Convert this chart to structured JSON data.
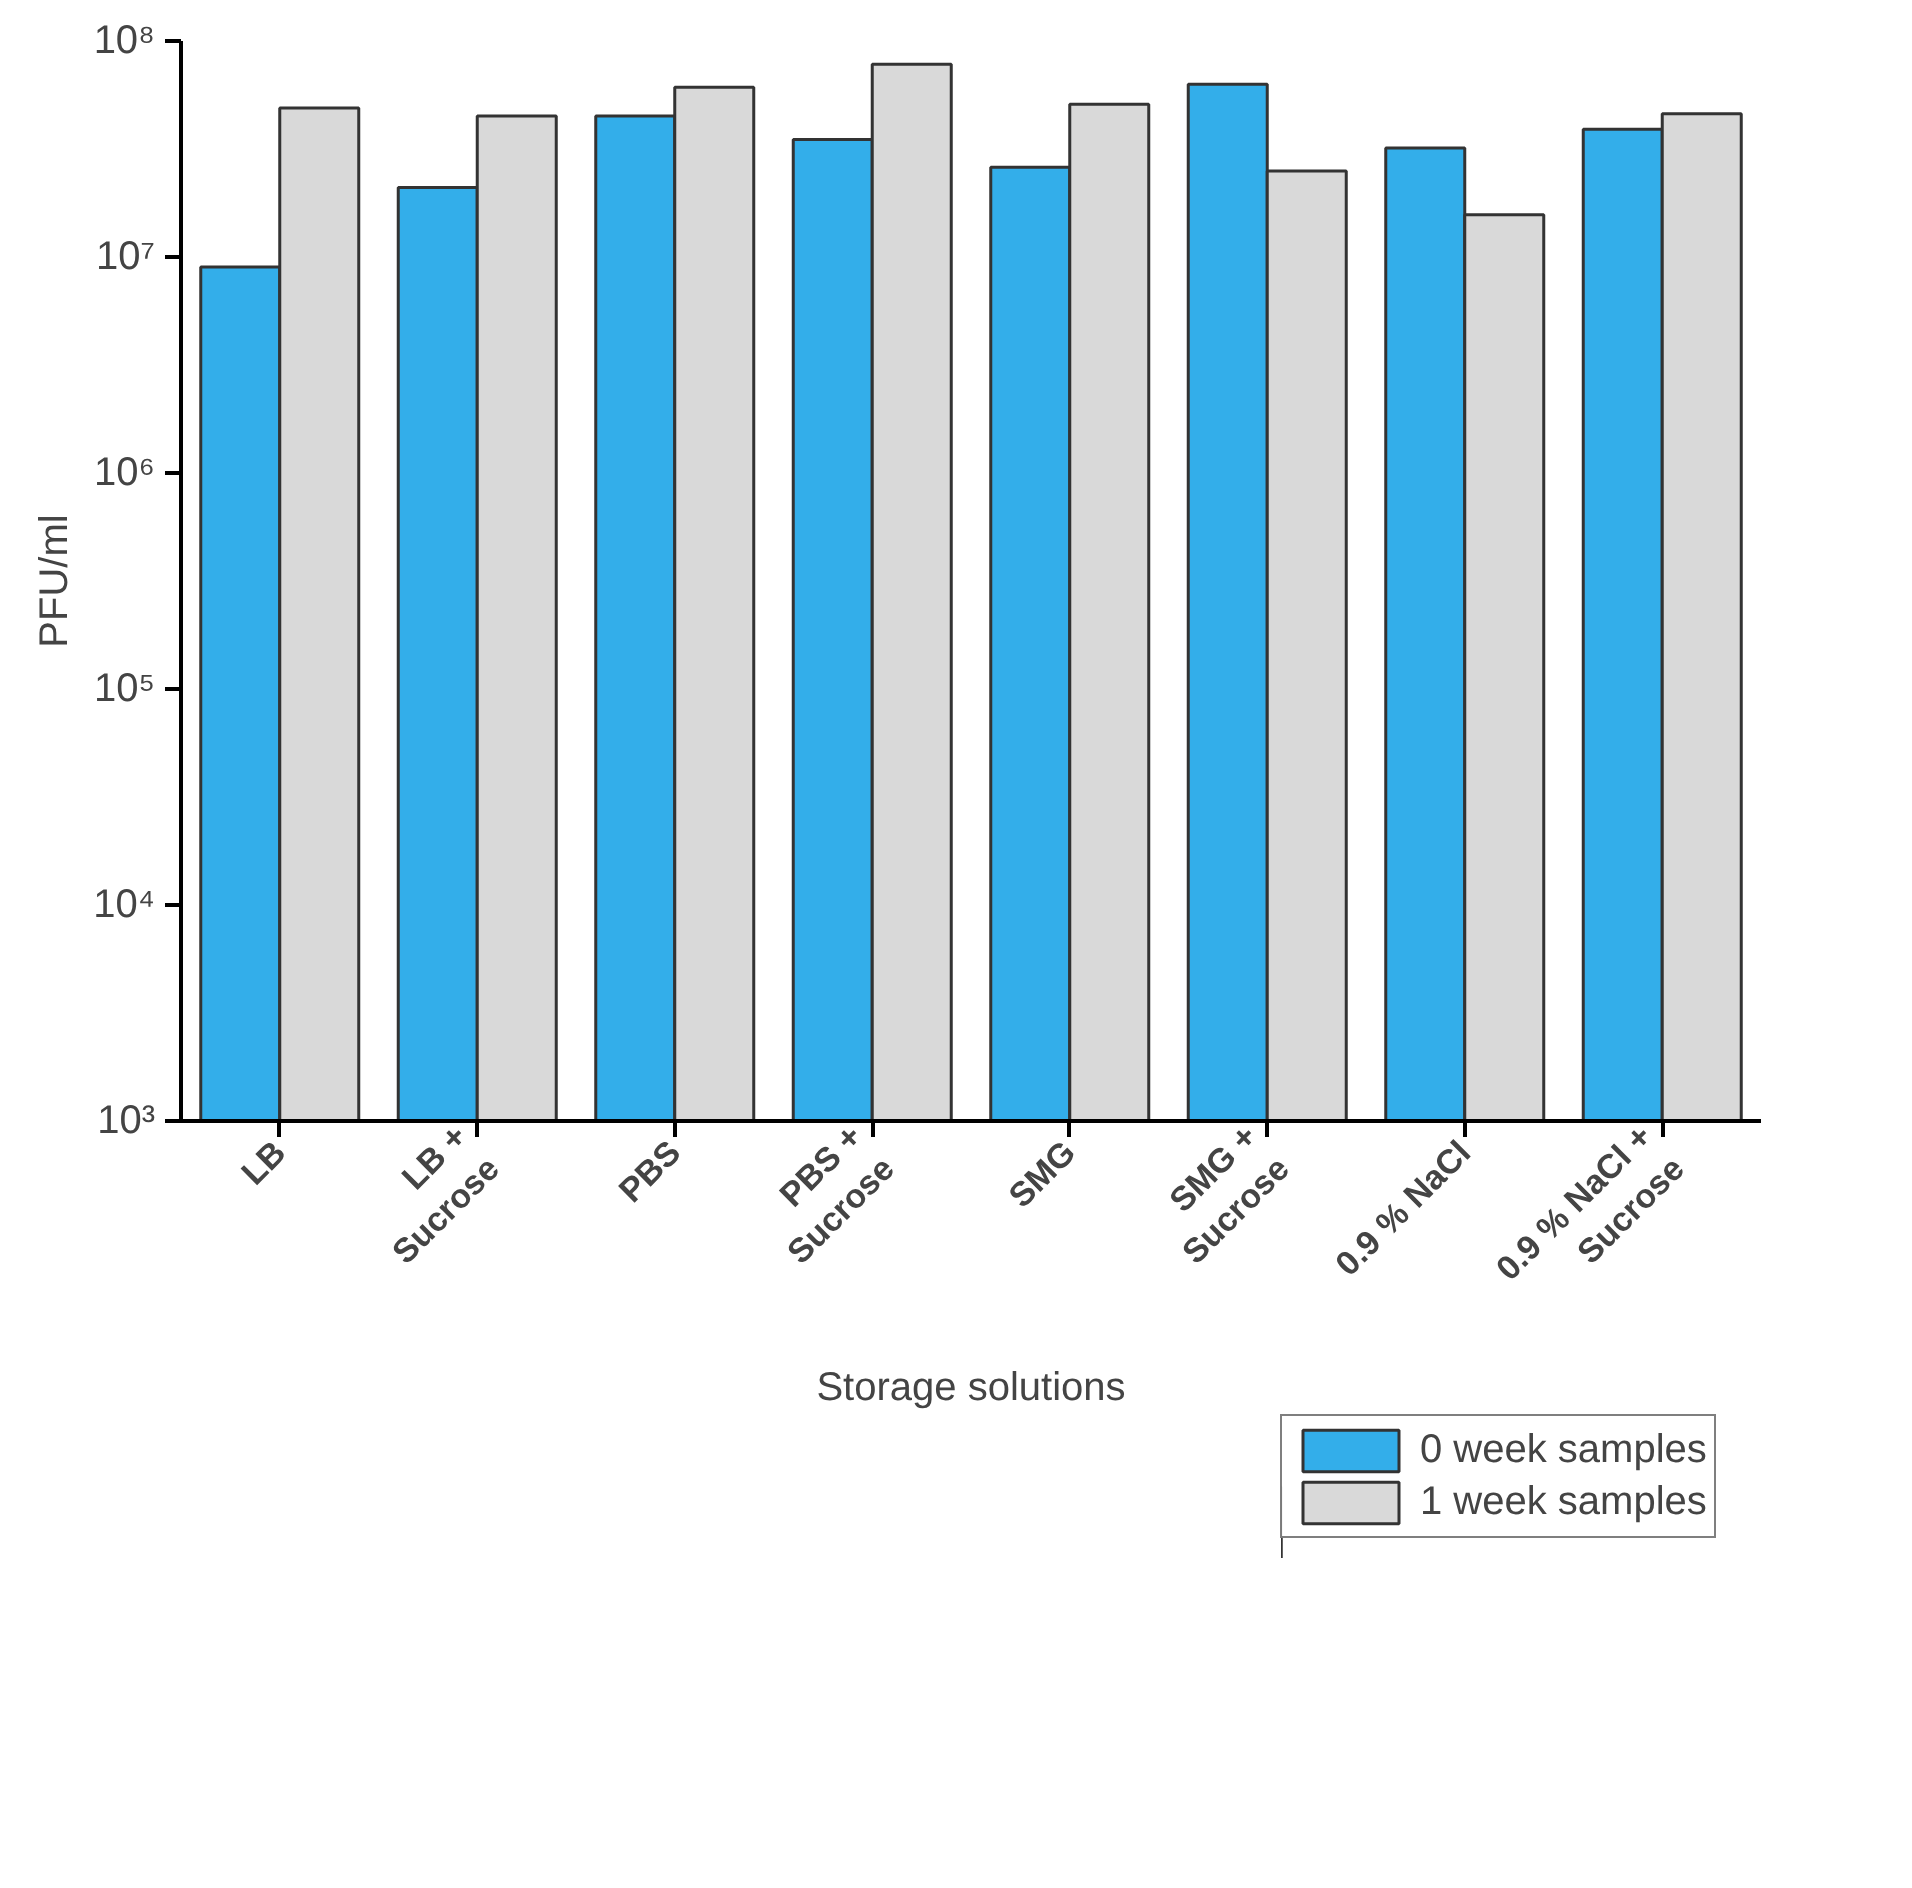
{
  "chart_data": {
    "type": "bar",
    "xlabel": "Storage solutions",
    "ylabel": "PFU/ml",
    "categories": [
      "LB",
      "LB + Sucrose",
      "PBS",
      "PBS + Sucrose",
      "SMG",
      "SMG + Sucrose",
      "0.9 % NaCl",
      "0.9 % NaCl + Sucrose"
    ],
    "series": [
      {
        "name": "0 week samples",
        "color": "#33aeea",
        "values": [
          9000000.0,
          21000000.0,
          45000000.0,
          35000000.0,
          26000000.0,
          63000000.0,
          32000000.0,
          39000000.0
        ]
      },
      {
        "name": "1 week samples",
        "color": "#d9d9d9",
        "values": [
          49000000.0,
          45000000.0,
          61000000.0,
          78000000.0,
          51000000.0,
          25000000.0,
          15700000.0,
          46000000.0
        ]
      }
    ],
    "log": true,
    "ylim": [
      1000,
      100000000
    ],
    "yticks": [
      {
        "value": 1000,
        "label": "10³"
      },
      {
        "value": 10000,
        "label": "10⁴"
      },
      {
        "value": 100000,
        "label": "10⁵"
      },
      {
        "value": 1000000,
        "label": "10⁶"
      },
      {
        "value": 10000000,
        "label": "10⁷"
      },
      {
        "value": 100000000,
        "label": "10⁸"
      }
    ],
    "grid": false,
    "legend": "bottom right"
  }
}
